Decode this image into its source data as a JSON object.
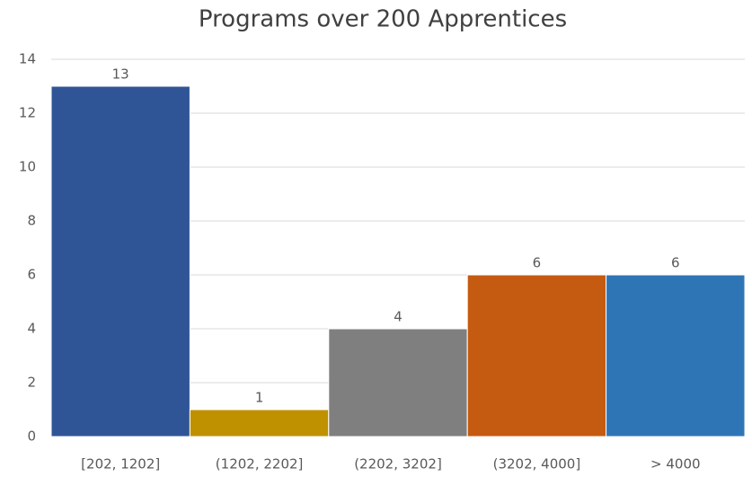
{
  "chart_data": {
    "type": "bar",
    "title": "Programs over 200 Apprentices",
    "categories": [
      "[202, 1202]",
      "(1202, 2202]",
      "(2202, 3202]",
      "(3202, 4000]",
      "> 4000"
    ],
    "values": [
      13,
      1,
      4,
      6,
      6
    ],
    "colors": [
      "#2f5597",
      "#bf9000",
      "#7f7f7f",
      "#c55a11",
      "#2e75b6"
    ],
    "ylim": [
      0,
      14
    ],
    "yticks": [
      0,
      2,
      4,
      6,
      8,
      10,
      12,
      14
    ],
    "grid": true
  }
}
